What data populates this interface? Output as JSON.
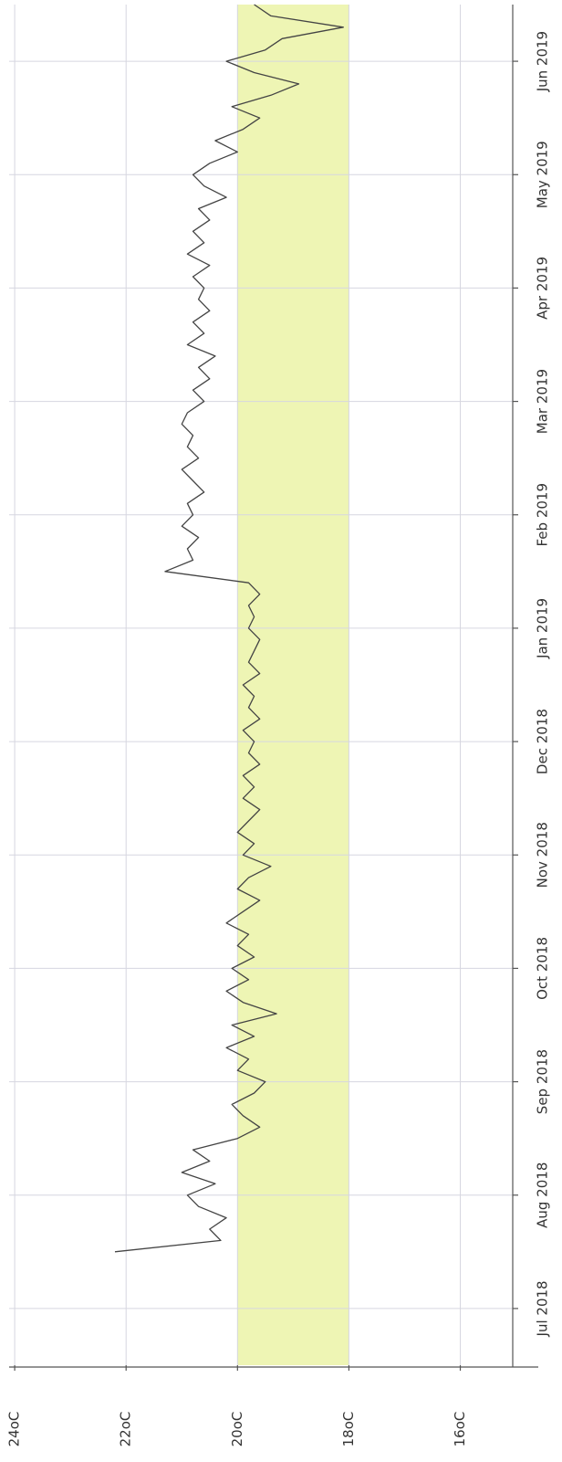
{
  "chart_data": {
    "type": "line",
    "x": [
      1.0,
      1.1,
      1.2,
      1.3,
      1.4,
      1.5,
      1.6,
      1.7,
      1.8,
      1.9,
      2.0,
      2.1,
      2.2,
      2.3,
      2.4,
      2.5,
      2.6,
      2.7,
      2.8,
      2.9,
      3.0,
      3.1,
      3.2,
      3.3,
      3.4,
      3.5,
      3.6,
      3.7,
      3.8,
      3.9,
      4.0,
      4.1,
      4.2,
      4.3,
      4.4,
      4.5,
      4.6,
      4.7,
      4.8,
      4.9,
      5.0,
      5.1,
      5.2,
      5.3,
      5.4,
      5.5,
      5.6,
      5.7,
      5.8,
      5.9,
      6.0,
      6.1,
      6.2,
      6.3,
      6.4,
      6.5,
      6.6,
      6.7,
      6.8,
      6.9,
      7.0,
      7.1,
      7.2,
      7.3,
      7.4,
      7.5,
      7.6,
      7.7,
      7.8,
      7.9,
      8.0,
      8.1,
      8.2,
      8.3,
      8.4,
      8.5,
      8.6,
      8.7,
      8.8,
      8.9,
      9.0,
      9.1,
      9.2,
      9.3,
      9.4,
      9.5,
      9.6,
      9.7,
      9.8,
      9.9,
      10.0,
      10.1,
      10.2,
      10.3,
      10.4,
      10.5,
      10.6,
      10.7,
      10.8,
      10.9,
      11.0,
      11.1,
      11.2,
      11.3,
      11.4,
      11.5,
      11.6,
      11.7,
      11.8,
      11.9,
      12.0
    ],
    "series": [
      {
        "color": "#444444",
        "values": [
          22.2,
          20.3,
          20.5,
          20.2,
          20.7,
          20.9,
          20.4,
          21.0,
          20.5,
          20.8,
          20.0,
          19.6,
          19.9,
          20.1,
          19.7,
          19.5,
          20.0,
          19.8,
          20.2,
          19.7,
          20.1,
          19.3,
          19.9,
          20.2,
          19.8,
          20.1,
          19.7,
          20.0,
          19.8,
          20.2,
          19.9,
          19.6,
          20.0,
          19.8,
          19.4,
          19.9,
          19.7,
          20.0,
          19.8,
          19.6,
          19.9,
          19.7,
          19.9,
          19.6,
          19.8,
          19.7,
          19.9,
          19.6,
          19.8,
          19.7,
          19.9,
          19.6,
          19.8,
          19.7,
          19.6,
          19.8,
          19.7,
          19.8,
          19.6,
          19.8,
          21.3,
          20.8,
          20.9,
          20.7,
          21.0,
          20.8,
          20.9,
          20.6,
          20.8,
          21.0,
          20.7,
          20.9,
          20.8,
          21.0,
          20.9,
          20.6,
          20.8,
          20.5,
          20.7,
          20.4,
          20.9,
          20.6,
          20.8,
          20.5,
          20.7,
          20.6,
          20.8,
          20.5,
          20.9,
          20.6,
          20.8,
          20.5,
          20.7,
          20.2,
          20.6,
          20.8,
          20.5,
          20.0,
          20.4,
          19.9,
          19.6,
          20.1,
          19.4,
          18.9,
          19.7,
          20.2,
          19.5,
          19.2,
          18.1,
          19.4,
          19.7
        ]
      }
    ],
    "xlim": [
      0,
      12
    ],
    "xticks": [
      {
        "value": 0.5,
        "label": "Jul 2018"
      },
      {
        "value": 1.5,
        "label": "Aug 2018"
      },
      {
        "value": 2.5,
        "label": "Sep 2018"
      },
      {
        "value": 3.5,
        "label": "Oct 2018"
      },
      {
        "value": 4.5,
        "label": "Nov 2018"
      },
      {
        "value": 5.5,
        "label": "Dec 2018"
      },
      {
        "value": 6.5,
        "label": "Jan 2019"
      },
      {
        "value": 7.5,
        "label": "Feb 2019"
      },
      {
        "value": 8.5,
        "label": "Mar 2019"
      },
      {
        "value": 9.5,
        "label": "Apr 2019"
      },
      {
        "value": 10.5,
        "label": "May 2019"
      },
      {
        "value": 11.5,
        "label": "Jun 2019"
      }
    ],
    "ylim": [
      24.1,
      14.6
    ],
    "yticks": [
      {
        "value": 24,
        "label": "24oC"
      },
      {
        "value": 22,
        "label": "22oC"
      },
      {
        "value": 20,
        "label": "20oC"
      },
      {
        "value": 18,
        "label": "18oC"
      },
      {
        "value": 16,
        "label": "16oC"
      }
    ],
    "band": {
      "range": [
        18,
        20
      ],
      "color": "#eef5b4"
    },
    "grid": true
  }
}
